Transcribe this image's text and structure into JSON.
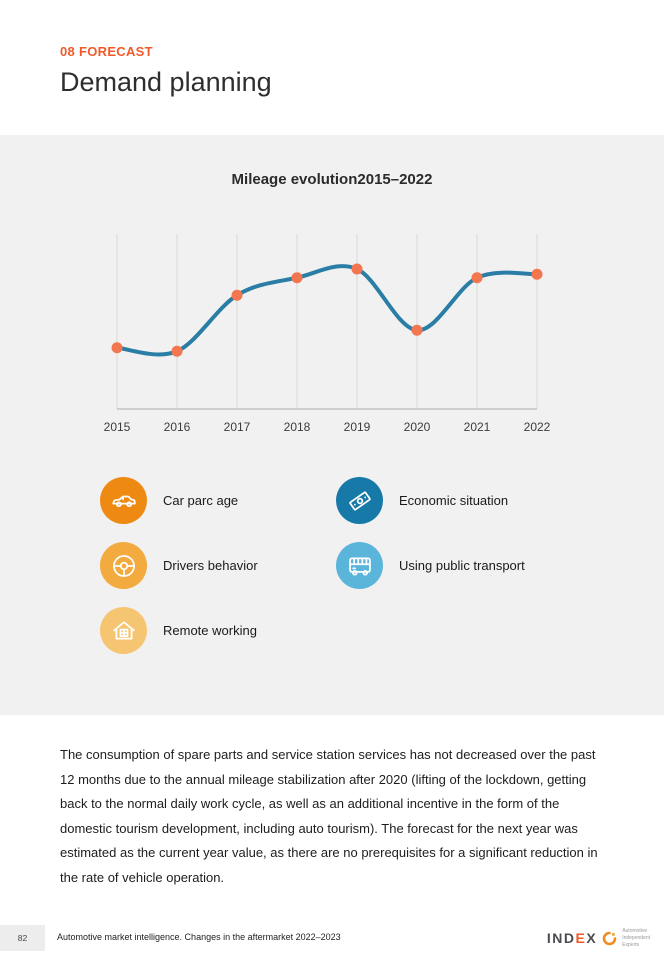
{
  "header": {
    "kicker": "08 FORECAST",
    "title": "Demand planning"
  },
  "chart": {
    "title": "Mileage evolution2015–2022"
  },
  "chart_data": {
    "type": "line",
    "title": "Mileage evolution2015–2022",
    "x": [
      "2015",
      "2016",
      "2017",
      "2018",
      "2019",
      "2020",
      "2021",
      "2022"
    ],
    "values": [
      35,
      33,
      65,
      75,
      80,
      45,
      75,
      77
    ],
    "ylim": [
      0,
      100
    ],
    "xlabel": "",
    "ylabel": "",
    "grid": "vertical-only",
    "legend_position": "none",
    "line_color": "#2a7ea5",
    "marker_color": "#f4764e",
    "grid_color": "#d9d9d9",
    "axis_color": "#c4c4c4"
  },
  "factors": {
    "left": [
      {
        "label": "Car parc age",
        "icon": "car-icon",
        "color": "#ee8a12"
      },
      {
        "label": "Drivers behavior",
        "icon": "steering-wheel-icon",
        "color": "#f3aa3e"
      },
      {
        "label": "Remote working",
        "icon": "house-icon",
        "color": "#f6c571"
      }
    ],
    "right": [
      {
        "label": "Economic situation",
        "icon": "banknote-icon",
        "color": "#1779a8"
      },
      {
        "label": "Using public transport",
        "icon": "bus-icon",
        "color": "#5bb5da"
      }
    ]
  },
  "body_text": "The consumption of spare parts and service station services has not decreased over the past 12 months due to the annual mileage stabilization after 2020 (lifting of the lockdown, getting back to the normal daily work cycle, as well as an additional incentive in the form of the domestic tourism development, including auto tourism). The forecast for the next year was estimated as the current year value, as there are no prerequisites for a significant reduction in the rate of vehicle operation.",
  "footer": {
    "page_number": "82",
    "report_title": "Automotive market intelligence. Changes in the aftermarket 2022–2023",
    "logo": {
      "part1": "IND",
      "accent": "E",
      "part2": "X",
      "tagline": [
        "Automotive",
        "Independent",
        "Experts"
      ]
    }
  },
  "colors": {
    "accent_orange": "#f05a28",
    "panel_bg": "#f1f1f2",
    "text_dark": "#2e2e2e"
  }
}
